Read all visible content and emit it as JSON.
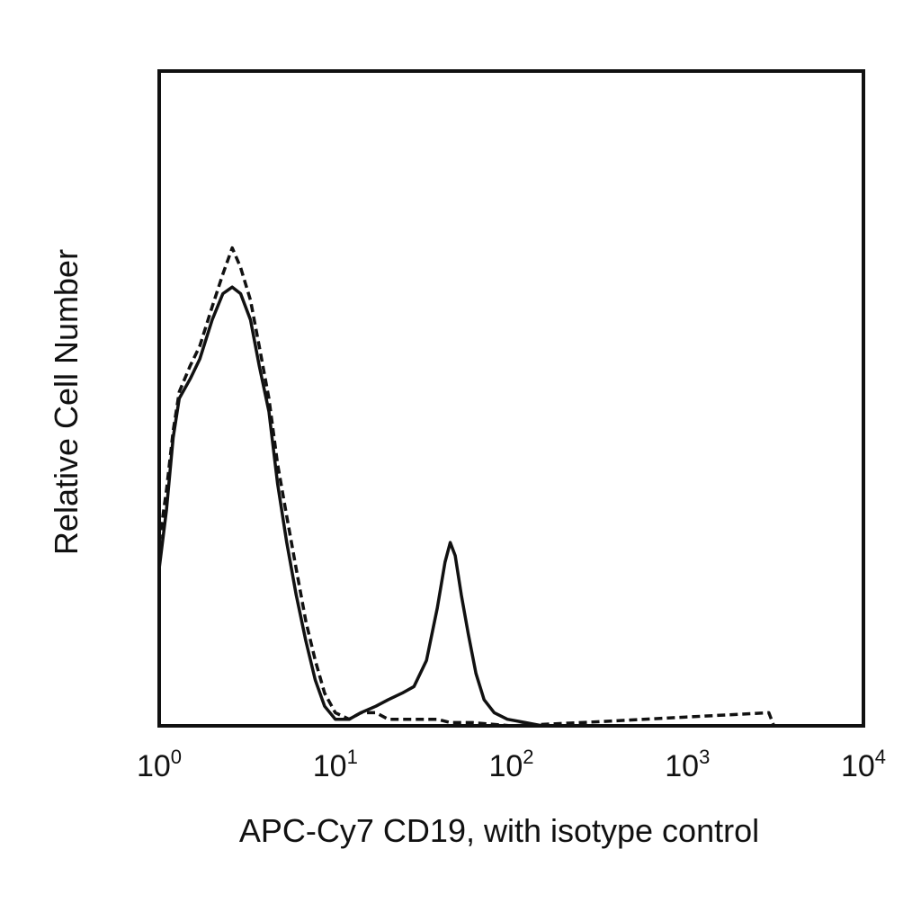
{
  "chart_data": {
    "type": "histogram",
    "xlabel": "APC-Cy7 CD19, with isotype control",
    "ylabel": "Relative Cell Number",
    "x_scale": "log",
    "xlim": [
      1,
      10000
    ],
    "ylim": [
      0,
      100
    ],
    "grid": false,
    "legend": "none",
    "x_ticks": [
      {
        "base": "10",
        "exp": "0",
        "value": 1
      },
      {
        "base": "10",
        "exp": "1",
        "value": 10
      },
      {
        "base": "10",
        "exp": "2",
        "value": 100
      },
      {
        "base": "10",
        "exp": "3",
        "value": 1000
      },
      {
        "base": "10",
        "exp": "4",
        "value": 10000
      }
    ],
    "colors": {
      "stained": "#111111",
      "isotype": "#111111",
      "frame": "#111111"
    },
    "series": [
      {
        "line_style": "solid",
        "x": [
          1.0,
          1.1,
          1.2,
          1.3,
          1.5,
          1.7,
          2.0,
          2.3,
          2.6,
          2.9,
          3.3,
          3.7,
          4.2,
          4.7,
          5.3,
          6.0,
          6.8,
          7.7,
          8.7,
          10,
          12,
          14,
          17,
          20,
          24,
          28,
          33,
          38,
          42,
          45,
          48,
          52,
          57,
          63,
          70,
          80,
          95,
          120,
          150
        ],
        "y": [
          24,
          33,
          44,
          50,
          53,
          56,
          62,
          66,
          67,
          66,
          62,
          55,
          48,
          37,
          28,
          20,
          13,
          7,
          3,
          1,
          1,
          2,
          3,
          4,
          5,
          6,
          10,
          18,
          25,
          28,
          26,
          20,
          14,
          8,
          4,
          2,
          1,
          0.5,
          0
        ]
      },
      {
        "line_style": "dashed",
        "x": [
          1.0,
          1.1,
          1.2,
          1.3,
          1.5,
          1.7,
          2.0,
          2.3,
          2.6,
          2.9,
          3.3,
          3.7,
          4.2,
          4.7,
          5.3,
          6.0,
          6.8,
          7.7,
          8.7,
          10,
          12,
          14,
          17,
          20,
          24,
          28,
          33,
          38,
          45,
          60,
          100,
          250,
          2900,
          3100
        ],
        "y": [
          28,
          36,
          45,
          51,
          55,
          58,
          64,
          69,
          73,
          70,
          65,
          58,
          50,
          40,
          32,
          24,
          16,
          10,
          5,
          2,
          1,
          2,
          2,
          1,
          1,
          1,
          1,
          1,
          0.5,
          0.5,
          0,
          0.5,
          2,
          0
        ]
      }
    ]
  }
}
